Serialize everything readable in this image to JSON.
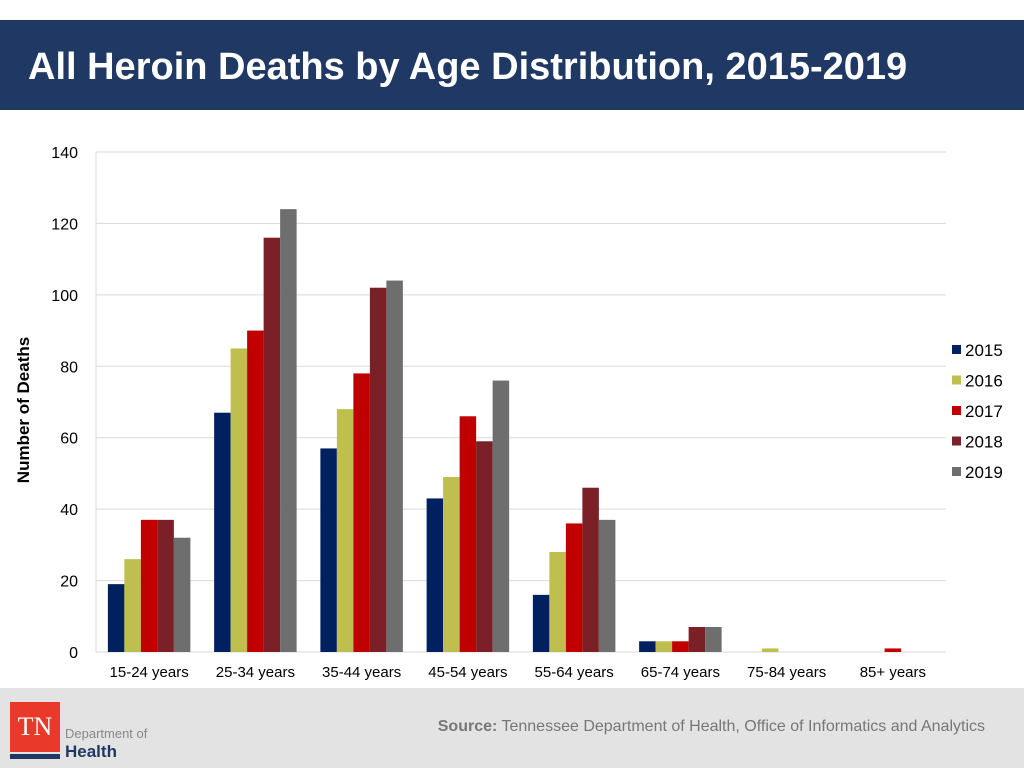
{
  "header": {
    "title": "All Heroin Deaths by Age Distribution, 2015-2019"
  },
  "footer": {
    "source_label": "Source:",
    "source_text": " Tennessee Department of Health, Office of Informatics and Analytics",
    "logo": {
      "mark": "TN",
      "line1": "Department of",
      "line2": "Health"
    }
  },
  "chart_data": {
    "type": "bar",
    "title": "",
    "xlabel": "",
    "ylabel": "Number of Deaths",
    "ylim": [
      0,
      140
    ],
    "yticks": [
      0,
      20,
      40,
      60,
      80,
      100,
      120,
      140
    ],
    "grid": true,
    "legend_position": "right",
    "categories": [
      "15-24 years",
      "25-34 years",
      "35-44 years",
      "45-54 years",
      "55-64 years",
      "65-74 years",
      "75-84 years",
      "85+ years"
    ],
    "series": [
      {
        "name": "2015",
        "color": "#002060",
        "values": [
          19,
          67,
          57,
          43,
          16,
          3,
          0,
          0
        ]
      },
      {
        "name": "2016",
        "color": "#bfbf4f",
        "values": [
          26,
          85,
          68,
          49,
          28,
          3,
          1,
          0
        ]
      },
      {
        "name": "2017",
        "color": "#c00000",
        "values": [
          37,
          90,
          78,
          66,
          36,
          3,
          0,
          1
        ]
      },
      {
        "name": "2018",
        "color": "#7b2027",
        "values": [
          37,
          116,
          102,
          59,
          46,
          7,
          0,
          0
        ]
      },
      {
        "name": "2019",
        "color": "#6e6e6e",
        "values": [
          32,
          124,
          104,
          76,
          37,
          7,
          0,
          0
        ]
      }
    ]
  }
}
